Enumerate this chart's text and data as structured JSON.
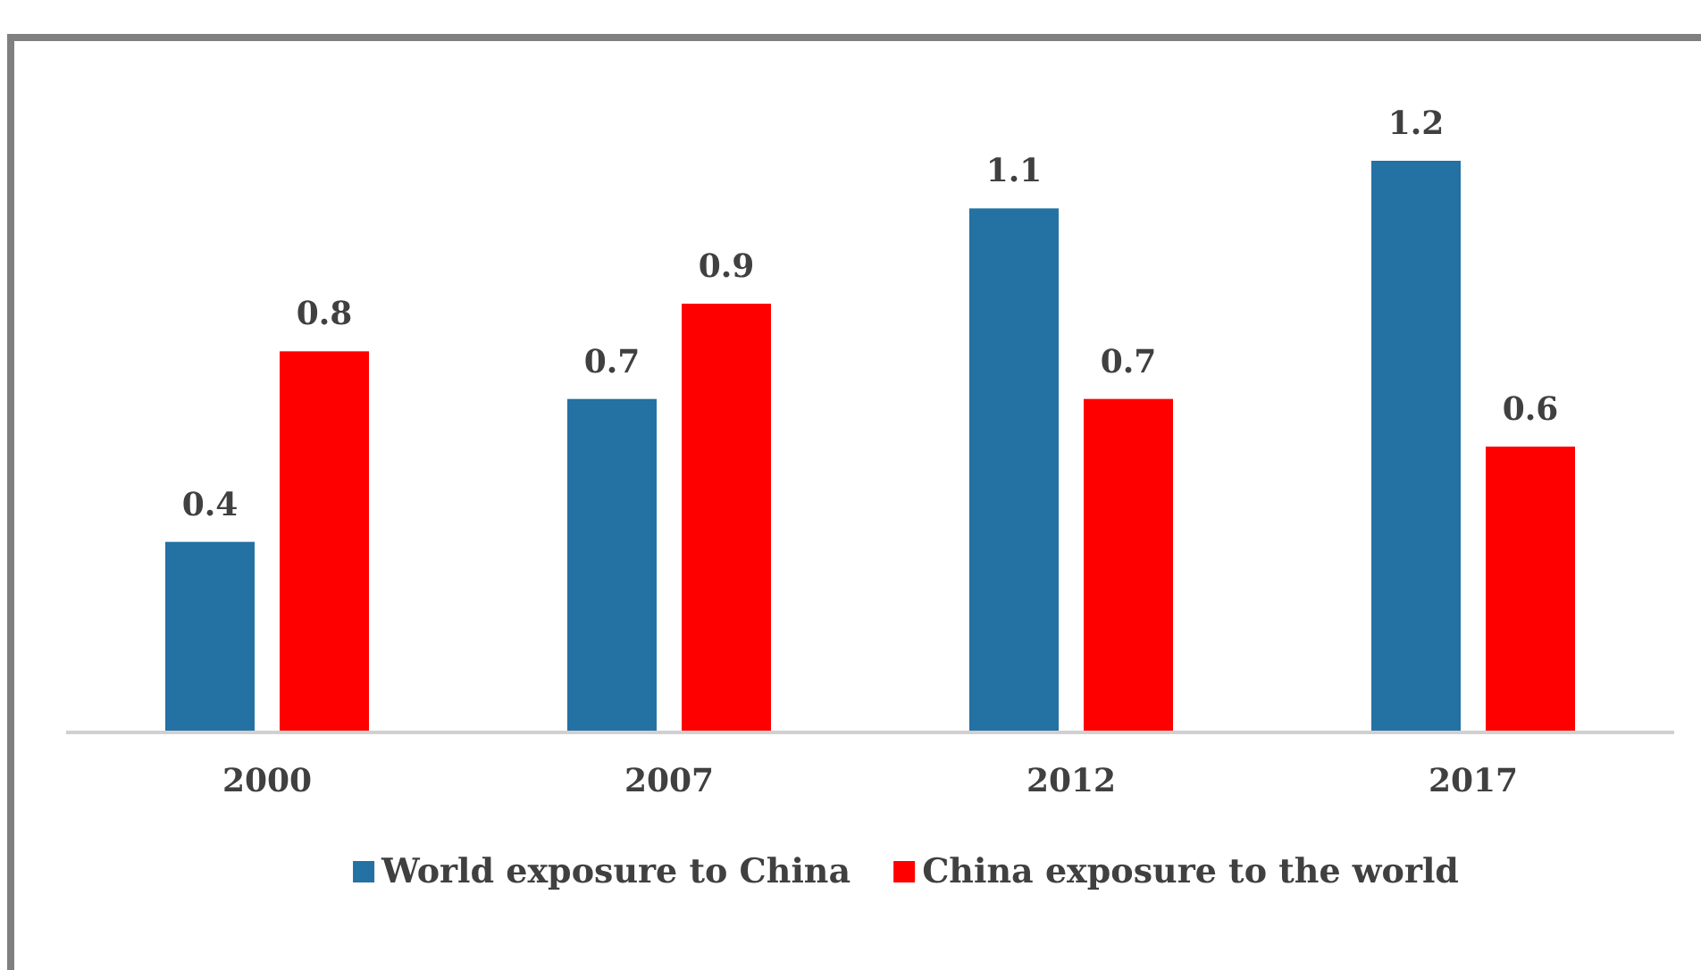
{
  "chart_data": {
    "type": "bar",
    "categories": [
      "2000",
      "2007",
      "2012",
      "2017"
    ],
    "series": [
      {
        "name": "World exposure to China",
        "color": "#2471a3",
        "values": [
          0.4,
          0.7,
          1.1,
          1.2
        ]
      },
      {
        "name": "China exposure to the world",
        "color": "#ff0000",
        "values": [
          0.8,
          0.9,
          0.7,
          0.6
        ]
      }
    ],
    "data_labels": true,
    "legend": "bottom"
  }
}
